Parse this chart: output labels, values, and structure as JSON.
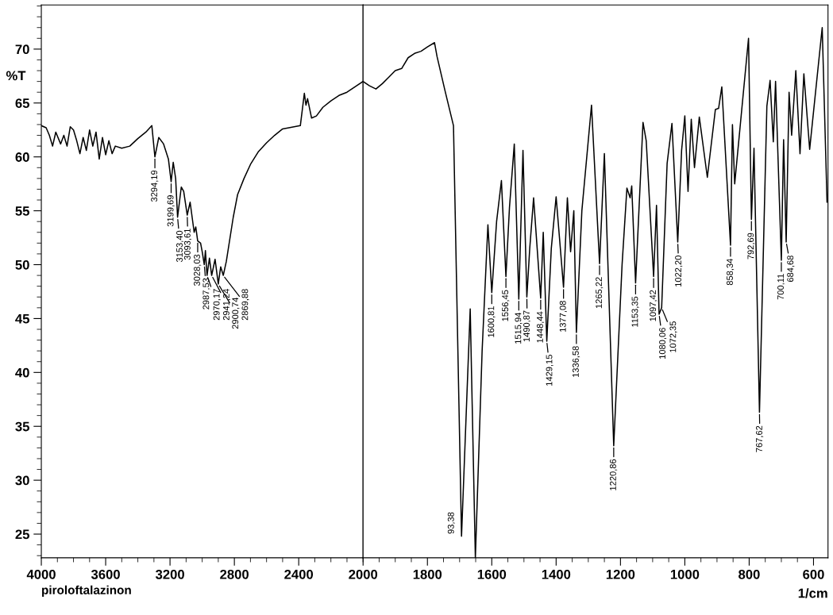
{
  "chart_data": [
    {
      "type": "line",
      "ylabel": "%T",
      "xlim": [
        4000,
        2000
      ],
      "ylim": [
        22.8,
        74.1
      ],
      "xticks": [
        4000,
        3600,
        3200,
        2800,
        2400,
        2000
      ],
      "yticks": [
        25,
        30,
        35,
        40,
        45,
        50,
        55,
        60,
        65,
        70
      ],
      "grid": false,
      "marker": "none",
      "line_style": "solid",
      "series": [
        {
          "color": "#000000",
          "x": [
            4000,
            3970,
            3950,
            3930,
            3910,
            3880,
            3860,
            3840,
            3820,
            3800,
            3780,
            3760,
            3740,
            3720,
            3700,
            3680,
            3660,
            3640,
            3620,
            3600,
            3580,
            3560,
            3540,
            3500,
            3450,
            3400,
            3350,
            3313,
            3294,
            3270,
            3240,
            3210,
            3193,
            3180,
            3165,
            3153,
            3130,
            3115,
            3093,
            3075,
            3050,
            3040,
            3028,
            3010,
            3000,
            2987,
            2980,
            2970,
            2955,
            2941,
            2920,
            2900,
            2885,
            2869,
            2850,
            2807,
            2780,
            2740,
            2700,
            2650,
            2600,
            2550,
            2500,
            2390,
            2365,
            2355,
            2345,
            2320,
            2290,
            2250,
            2200,
            2150,
            2100,
            2050,
            2000
          ],
          "values": [
            62.9,
            62.7,
            62.0,
            61.0,
            62.3,
            61.2,
            62.0,
            61.0,
            62.8,
            62.5,
            61.5,
            60.3,
            61.8,
            60.6,
            62.5,
            61.0,
            62.3,
            59.8,
            61.8,
            60.2,
            61.5,
            60.3,
            61.0,
            60.8,
            61.0,
            61.7,
            62.3,
            62.9,
            60.0,
            61.8,
            61.2,
            59.8,
            57.7,
            59.5,
            58.0,
            54.4,
            57.2,
            56.8,
            54.6,
            55.8,
            53.0,
            53.5,
            52.2,
            52.0,
            51.2,
            50.0,
            51.3,
            49.0,
            50.6,
            49.0,
            50.5,
            48.2,
            49.8,
            49.0,
            50.3,
            54.4,
            56.5,
            58.0,
            59.3,
            60.5,
            61.3,
            62.0,
            62.6,
            62.9,
            65.9,
            64.8,
            65.4,
            63.6,
            63.8,
            64.6,
            65.2,
            65.7,
            66.0,
            66.5,
            67.0
          ]
        }
      ],
      "annotations": [
        {
          "text": "3294,19",
          "x": 3294,
          "y": 60.0
        },
        {
          "text": "3199,69",
          "x": 3193,
          "y": 57.7
        },
        {
          "text": "3153,40",
          "x": 3153,
          "y": 54.4
        },
        {
          "text": "3093,61",
          "x": 3093,
          "y": 54.6
        },
        {
          "text": "3028,03",
          "x": 3028,
          "y": 52.2
        },
        {
          "text": "2987,53",
          "x": 2987,
          "y": 50.0
        },
        {
          "text": "2970,17",
          "x": 2970,
          "y": 49.0
        },
        {
          "text": "2941,24",
          "x": 2941,
          "y": 49.0
        },
        {
          "text": "2900,74",
          "x": 2900,
          "y": 48.2
        },
        {
          "text": "2869,88",
          "x": 2869,
          "y": 49.0
        },
        "piroloftalazinon"
      ]
    },
    {
      "type": "line",
      "xlabel": "1/cm",
      "xlim": [
        2000,
        555
      ],
      "ylim": [
        22.8,
        74.1
      ],
      "xticks": [
        1800,
        1600,
        1400,
        1200,
        1000,
        800,
        600
      ],
      "tick_labels": "x",
      "grid": false,
      "marker": "none",
      "line_style": "solid",
      "series": [
        {
          "color": "#000000",
          "x": [
            2000,
            1980,
            1960,
            1940,
            1920,
            1900,
            1880,
            1860,
            1840,
            1820,
            1800,
            1778,
            1770,
            1745,
            1719,
            1694,
            1667,
            1651,
            1630,
            1612,
            1600,
            1585,
            1570,
            1556,
            1545,
            1530,
            1516,
            1503,
            1491,
            1482,
            1470,
            1448,
            1440,
            1429,
            1415,
            1400,
            1377,
            1365,
            1355,
            1345,
            1337,
            1320,
            1290,
            1265,
            1250,
            1221,
            1195,
            1180,
            1170,
            1165,
            1153,
            1130,
            1120,
            1097,
            1088,
            1080,
            1072,
            1055,
            1040,
            1022,
            1010,
            1000,
            990,
            980,
            970,
            955,
            930,
            905,
            895,
            885,
            858,
            852,
            845,
            802,
            793,
            785,
            768,
            745,
            735,
            725,
            718,
            700,
            693,
            685,
            676,
            668,
            655,
            642,
            630,
            612,
            573,
            558
          ],
          "values": [
            67.0,
            66.6,
            66.3,
            66.8,
            67.4,
            68.0,
            68.2,
            69.2,
            69.6,
            69.8,
            70.2,
            70.6,
            69.3,
            66.1,
            62.9,
            24.8,
            45.9,
            22.8,
            42.0,
            53.7,
            47.4,
            54.0,
            57.8,
            48.9,
            55.3,
            61.2,
            46.8,
            60.6,
            47.0,
            51.5,
            56.2,
            46.9,
            53.0,
            42.9,
            51.5,
            56.3,
            47.9,
            56.2,
            51.2,
            55.0,
            43.7,
            55.0,
            64.8,
            50.1,
            60.3,
            33.2,
            50.0,
            57.1,
            56.2,
            57.3,
            48.3,
            63.2,
            61.5,
            48.9,
            55.5,
            45.4,
            46.0,
            59.4,
            63.1,
            52.1,
            60.6,
            63.8,
            56.8,
            63.5,
            59.0,
            63.7,
            58.1,
            64.4,
            64.5,
            66.5,
            51.8,
            63.0,
            57.5,
            71.0,
            54.2,
            60.8,
            36.3,
            64.7,
            67.1,
            61.4,
            67.0,
            50.4,
            61.6,
            52.1,
            66.0,
            62.0,
            68.0,
            60.3,
            67.7,
            60.7,
            72.0,
            55.8
          ]
        }
      ],
      "annotations": [
        {
          "text": "93,38",
          "x": 1694,
          "y": 24.8
        },
        {
          "text": "1600,81",
          "x": 1600,
          "y": 47.4
        },
        {
          "text": "1556,45",
          "x": 1556,
          "y": 48.9
        },
        {
          "text": "1515,94",
          "x": 1516,
          "y": 46.8
        },
        {
          "text": "1490,87",
          "x": 1491,
          "y": 47.0
        },
        {
          "text": "1448,44",
          "x": 1448,
          "y": 46.9
        },
        {
          "text": "1429,15",
          "x": 1429,
          "y": 42.9
        },
        {
          "text": "1377,08",
          "x": 1377,
          "y": 47.9
        },
        {
          "text": "1336,58",
          "x": 1337,
          "y": 43.7
        },
        {
          "text": "1265,22",
          "x": 1265,
          "y": 50.1
        },
        {
          "text": "1220,86",
          "x": 1221,
          "y": 33.2
        },
        {
          "text": "1153,35",
          "x": 1153,
          "y": 48.3
        },
        {
          "text": "1097,42",
          "x": 1097,
          "y": 48.9
        },
        {
          "text": "1080,06",
          "x": 1080,
          "y": 45.4
        },
        {
          "text": "1072,35",
          "x": 1072,
          "y": 46.0
        },
        {
          "text": "1022,20",
          "x": 1022,
          "y": 52.1
        },
        {
          "text": "858,34",
          "x": 858,
          "y": 51.8
        },
        {
          "text": "792,69",
          "x": 793,
          "y": 54.2
        },
        {
          "text": "767,62",
          "x": 768,
          "y": 36.3
        },
        {
          "text": "700,11",
          "x": 700,
          "y": 50.4
        },
        {
          "text": "684,68",
          "x": 685,
          "y": 52.1
        }
      ]
    }
  ]
}
